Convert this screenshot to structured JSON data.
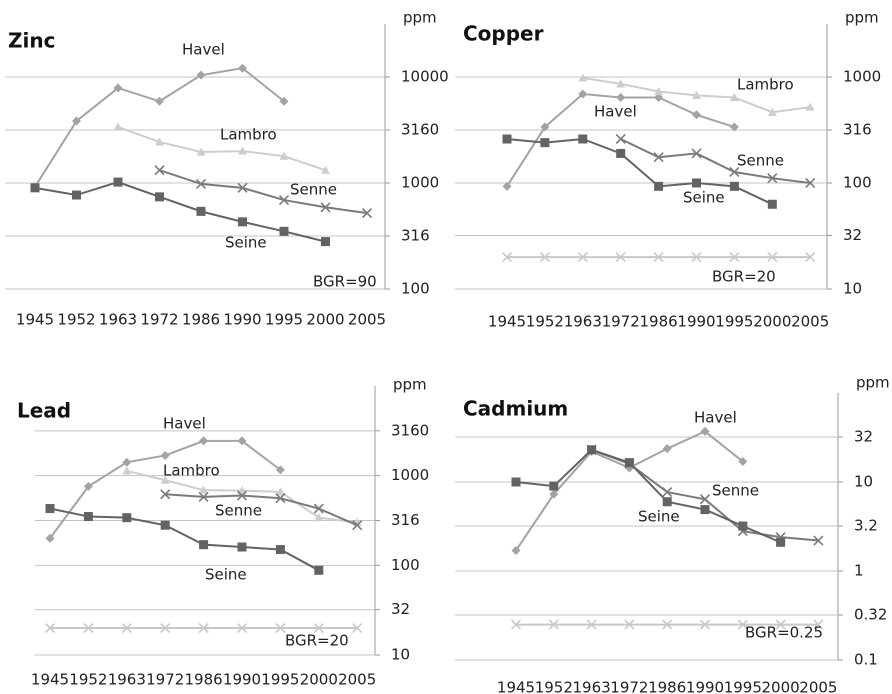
{
  "chart_data": [
    {
      "type": "line",
      "title": "Zinc",
      "y_label": "ppm",
      "log_scale": true,
      "grid": true,
      "categories": [
        "1945",
        "1952",
        "1963",
        "1972",
        "1986",
        "1990",
        "1995",
        "2000",
        "2005"
      ],
      "ylim": [
        100,
        31600
      ],
      "yticks": [
        100,
        316,
        1000,
        3160,
        10000
      ],
      "annotation": "BGR=90",
      "series": [
        {
          "name": "Havel",
          "color": "#a3a3a3",
          "marker": "diamond",
          "values": [
            920,
            3840,
            7870,
            5900,
            10400,
            12100,
            5900,
            null,
            null
          ]
        },
        {
          "name": "Lambro",
          "color": "#cdcdcd",
          "marker": "triangle",
          "values": [
            null,
            null,
            3370,
            2440,
            1960,
            2000,
            1790,
            1320,
            null
          ]
        },
        {
          "name": "Senne",
          "color": "#7a7a7a",
          "marker": "x",
          "values": [
            null,
            null,
            null,
            1320,
            980,
            900,
            690,
            590,
            520
          ]
        },
        {
          "name": "Seine",
          "color": "#636363",
          "marker": "square",
          "values": [
            900,
            770,
            1020,
            740,
            540,
            430,
            350,
            280,
            null
          ]
        }
      ]
    },
    {
      "type": "line",
      "title": "Copper",
      "y_label": "ppm",
      "log_scale": true,
      "grid": true,
      "categories": [
        "1945",
        "1952",
        "1963",
        "1972",
        "1986",
        "1990",
        "1995",
        "2000",
        "2005"
      ],
      "ylim": [
        10,
        3160
      ],
      "yticks": [
        10,
        32,
        100,
        316,
        1000
      ],
      "reference": {
        "label": "BGR=20",
        "value": 20,
        "color": "#c8c8c8"
      },
      "series": [
        {
          "name": "Havel",
          "color": "#a3a3a3",
          "marker": "diamond",
          "values": [
            93,
            337,
            690,
            640,
            640,
            440,
            337,
            null,
            null
          ]
        },
        {
          "name": "Lambro",
          "color": "#cdcdcd",
          "marker": "triangle",
          "values": [
            null,
            null,
            980,
            860,
            730,
            670,
            640,
            465,
            520
          ]
        },
        {
          "name": "Senne",
          "color": "#7a7a7a",
          "marker": "x",
          "values": [
            null,
            null,
            null,
            260,
            175,
            190,
            127,
            111,
            100
          ]
        },
        {
          "name": "Seine",
          "color": "#636363",
          "marker": "square",
          "values": [
            260,
            240,
            260,
            190,
            93,
            100,
            93,
            63,
            null
          ]
        }
      ]
    },
    {
      "type": "line",
      "title": "Lead",
      "y_label": "ppm",
      "log_scale": true,
      "grid": true,
      "categories": [
        "1945",
        "1952",
        "1963",
        "1972",
        "1986",
        "1990",
        "1995",
        "2000",
        "2005"
      ],
      "ylim": [
        10,
        10000
      ],
      "yticks": [
        10,
        32,
        100,
        316,
        1000,
        3160
      ],
      "reference": {
        "label": "BGR=20",
        "value": 20,
        "color": "#c8c8c8"
      },
      "series": [
        {
          "name": "Havel",
          "color": "#a3a3a3",
          "marker": "diamond",
          "values": [
            200,
            760,
            1410,
            1680,
            2440,
            2440,
            1160,
            null,
            null
          ]
        },
        {
          "name": "Lambro",
          "color": "#cdcdcd",
          "marker": "triangle",
          "values": [
            null,
            null,
            1130,
            890,
            690,
            680,
            660,
            340,
            300
          ]
        },
        {
          "name": "Senne",
          "color": "#7a7a7a",
          "marker": "x",
          "values": [
            null,
            null,
            null,
            620,
            580,
            600,
            560,
            430,
            280
          ]
        },
        {
          "name": "Seine",
          "color": "#636363",
          "marker": "square",
          "values": [
            430,
            350,
            340,
            280,
            170,
            160,
            150,
            88,
            null
          ]
        }
      ]
    },
    {
      "type": "line",
      "title": "Cadmium",
      "y_label": "ppm",
      "log_scale": true,
      "grid": true,
      "categories": [
        "1945",
        "1952",
        "1963",
        "1972",
        "1986",
        "1990",
        "1995",
        "2000",
        "2005"
      ],
      "ylim": [
        0.1,
        100
      ],
      "yticks": [
        0.1,
        0.32,
        1,
        3.2,
        10,
        32
      ],
      "reference": {
        "label": "BGR=0.25",
        "value": 0.25,
        "color": "#c8c8c8"
      },
      "series": [
        {
          "name": "Havel",
          "color": "#a3a3a3",
          "marker": "diamond",
          "values": [
            1.7,
            7.3,
            22,
            14.4,
            23.7,
            37,
            17,
            null,
            null
          ]
        },
        {
          "name": "Senne",
          "color": "#7a7a7a",
          "marker": "x",
          "values": [
            null,
            null,
            23,
            16,
            7.7,
            6.4,
            2.8,
            2.4,
            2.2
          ]
        },
        {
          "name": "Seine",
          "color": "#636363",
          "marker": "square",
          "values": [
            10,
            9,
            23,
            16.5,
            6,
            4.9,
            3.2,
            2.1,
            null
          ]
        }
      ]
    }
  ]
}
